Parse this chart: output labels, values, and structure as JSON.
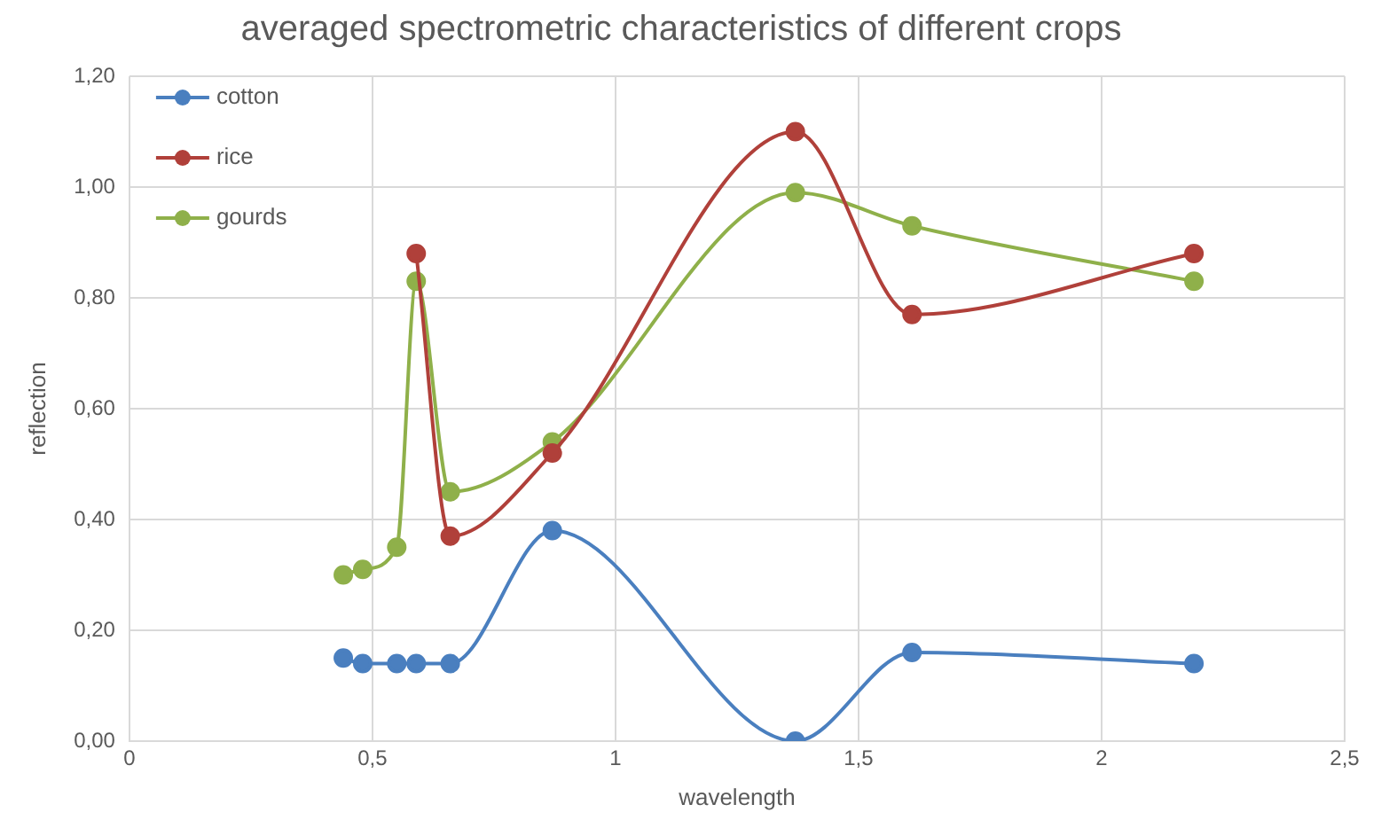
{
  "chart_data": {
    "type": "line",
    "title": "averaged spectrometric characteristics of different crops",
    "xlabel": "wavelength",
    "ylabel": "reflection",
    "x": [
      0.44,
      0.48,
      0.55,
      0.59,
      0.66,
      0.87,
      1.37,
      1.61,
      2.19
    ],
    "series": [
      {
        "name": "cotton",
        "color": "#4a7fbf",
        "values": [
          0.15,
          0.14,
          0.14,
          0.14,
          0.14,
          0.38,
          0.0,
          0.16,
          0.14
        ]
      },
      {
        "name": "rice",
        "color": "#b0403a",
        "values": [
          null,
          null,
          null,
          0.88,
          0.37,
          0.52,
          1.1,
          0.77,
          0.88
        ]
      },
      {
        "name": "gourds",
        "color": "#8fb04a",
        "values": [
          0.3,
          0.31,
          0.35,
          0.83,
          0.45,
          0.54,
          0.99,
          0.93,
          0.83
        ]
      }
    ],
    "xlim": [
      0,
      2.5
    ],
    "xticks": [
      0,
      {
        "value": 0.5,
        "label": "0,5"
      },
      1,
      {
        "value": 1.5,
        "label": "1,5"
      },
      2,
      {
        "value": 2.5,
        "label": "2,5"
      }
    ],
    "ylim": [
      0,
      1.2
    ],
    "yticks": [
      {
        "value": 0,
        "label": "0,00"
      },
      {
        "value": 0.2,
        "label": "0,20"
      },
      {
        "value": 0.4,
        "label": "0,40"
      },
      {
        "value": 0.6,
        "label": "0,60"
      },
      {
        "value": 0.8,
        "label": "0,80"
      },
      {
        "value": 1,
        "label": "1,00"
      },
      {
        "value": 1.2,
        "label": "1,20"
      }
    ],
    "grid": true,
    "legend": "top left",
    "marker": "circle",
    "line_style": "solid"
  }
}
